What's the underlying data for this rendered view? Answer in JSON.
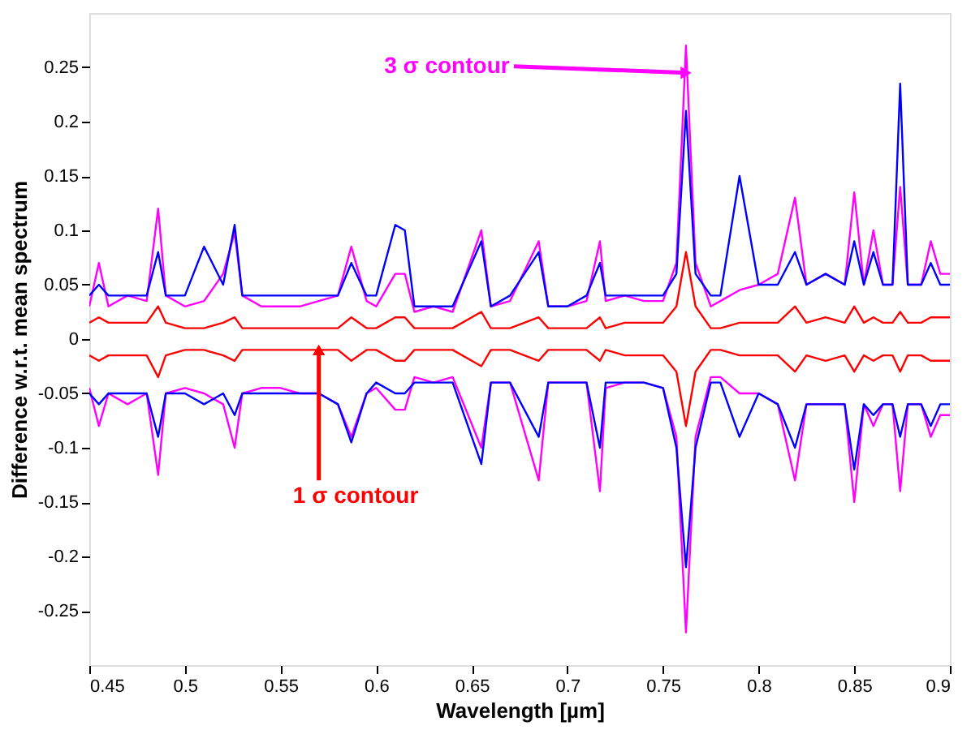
{
  "chart_data": {
    "type": "line",
    "xlabel": "Wavelength [µm]",
    "ylabel": "Difference w.r.t. mean spectrum",
    "x": [
      0.45,
      0.455,
      0.46,
      0.47,
      0.48,
      0.486,
      0.49,
      0.5,
      0.51,
      0.52,
      0.526,
      0.53,
      0.54,
      0.55,
      0.56,
      0.57,
      0.58,
      0.587,
      0.595,
      0.6,
      0.61,
      0.615,
      0.62,
      0.63,
      0.64,
      0.655,
      0.66,
      0.67,
      0.685,
      0.69,
      0.7,
      0.71,
      0.717,
      0.72,
      0.73,
      0.74,
      0.75,
      0.757,
      0.762,
      0.767,
      0.775,
      0.78,
      0.79,
      0.8,
      0.81,
      0.819,
      0.825,
      0.835,
      0.845,
      0.85,
      0.855,
      0.86,
      0.865,
      0.87,
      0.874,
      0.878,
      0.885,
      0.89,
      0.895,
      0.9
    ],
    "series": [
      {
        "color": "#ff00ff",
        "values": [
          0.03,
          0.07,
          0.03,
          0.04,
          0.035,
          0.12,
          0.04,
          0.03,
          0.035,
          0.06,
          0.098,
          0.04,
          0.03,
          0.03,
          0.03,
          0.035,
          0.04,
          0.085,
          0.035,
          0.03,
          0.06,
          0.06,
          0.025,
          0.03,
          0.025,
          0.1,
          0.03,
          0.035,
          0.09,
          0.03,
          0.03,
          0.035,
          0.09,
          0.035,
          0.04,
          0.035,
          0.035,
          0.07,
          0.27,
          0.07,
          0.03,
          0.035,
          0.045,
          0.05,
          0.06,
          0.13,
          0.05,
          0.06,
          0.05,
          0.135,
          0.05,
          0.1,
          0.05,
          0.05,
          0.14,
          0.05,
          0.05,
          0.09,
          0.06,
          0.06
        ]
      },
      {
        "color": "#ff00ff",
        "values": [
          -0.045,
          -0.08,
          -0.05,
          -0.06,
          -0.05,
          -0.125,
          -0.05,
          -0.045,
          -0.05,
          -0.06,
          -0.1,
          -0.05,
          -0.045,
          -0.045,
          -0.05,
          -0.05,
          -0.06,
          -0.09,
          -0.05,
          -0.045,
          -0.065,
          -0.065,
          -0.035,
          -0.04,
          -0.035,
          -0.1,
          -0.04,
          -0.04,
          -0.13,
          -0.04,
          -0.04,
          -0.04,
          -0.14,
          -0.045,
          -0.04,
          -0.04,
          -0.045,
          -0.09,
          -0.27,
          -0.09,
          -0.035,
          -0.035,
          -0.05,
          -0.05,
          -0.06,
          -0.13,
          -0.06,
          -0.06,
          -0.06,
          -0.15,
          -0.06,
          -0.08,
          -0.06,
          -0.06,
          -0.14,
          -0.06,
          -0.06,
          -0.09,
          -0.07,
          -0.07
        ]
      },
      {
        "color": "#0000ff",
        "values": [
          0.04,
          0.05,
          0.04,
          0.04,
          0.04,
          0.08,
          0.04,
          0.04,
          0.085,
          0.05,
          0.105,
          0.04,
          0.04,
          0.04,
          0.04,
          0.04,
          0.04,
          0.07,
          0.04,
          0.04,
          0.105,
          0.1,
          0.03,
          0.03,
          0.03,
          0.09,
          0.03,
          0.04,
          0.08,
          0.03,
          0.03,
          0.04,
          0.07,
          0.04,
          0.04,
          0.04,
          0.04,
          0.06,
          0.21,
          0.06,
          0.04,
          0.04,
          0.15,
          0.05,
          0.05,
          0.08,
          0.05,
          0.06,
          0.05,
          0.09,
          0.05,
          0.08,
          0.05,
          0.05,
          0.235,
          0.05,
          0.05,
          0.07,
          0.05,
          0.05
        ]
      },
      {
        "color": "#0000ff",
        "values": [
          -0.05,
          -0.06,
          -0.05,
          -0.05,
          -0.05,
          -0.09,
          -0.05,
          -0.05,
          -0.06,
          -0.05,
          -0.07,
          -0.05,
          -0.05,
          -0.05,
          -0.05,
          -0.05,
          -0.06,
          -0.095,
          -0.05,
          -0.04,
          -0.05,
          -0.05,
          -0.04,
          -0.04,
          -0.04,
          -0.115,
          -0.04,
          -0.04,
          -0.09,
          -0.04,
          -0.04,
          -0.04,
          -0.1,
          -0.04,
          -0.04,
          -0.04,
          -0.045,
          -0.1,
          -0.21,
          -0.1,
          -0.04,
          -0.04,
          -0.09,
          -0.05,
          -0.06,
          -0.1,
          -0.06,
          -0.06,
          -0.06,
          -0.12,
          -0.06,
          -0.07,
          -0.06,
          -0.06,
          -0.09,
          -0.06,
          -0.06,
          -0.08,
          -0.06,
          -0.06
        ]
      },
      {
        "color": "#ff0000",
        "values": [
          0.015,
          0.02,
          0.015,
          0.015,
          0.015,
          0.03,
          0.015,
          0.01,
          0.01,
          0.015,
          0.02,
          0.01,
          0.01,
          0.01,
          0.01,
          0.01,
          0.01,
          0.02,
          0.01,
          0.01,
          0.02,
          0.02,
          0.01,
          0.01,
          0.01,
          0.025,
          0.01,
          0.01,
          0.02,
          0.01,
          0.01,
          0.01,
          0.02,
          0.01,
          0.015,
          0.015,
          0.015,
          0.03,
          0.08,
          0.03,
          0.01,
          0.01,
          0.015,
          0.015,
          0.015,
          0.03,
          0.015,
          0.02,
          0.015,
          0.03,
          0.015,
          0.02,
          0.015,
          0.015,
          0.025,
          0.015,
          0.015,
          0.02,
          0.02,
          0.02
        ]
      },
      {
        "color": "#ff0000",
        "values": [
          -0.015,
          -0.02,
          -0.015,
          -0.015,
          -0.015,
          -0.035,
          -0.015,
          -0.01,
          -0.01,
          -0.015,
          -0.02,
          -0.01,
          -0.01,
          -0.01,
          -0.01,
          -0.01,
          -0.01,
          -0.02,
          -0.01,
          -0.01,
          -0.02,
          -0.02,
          -0.01,
          -0.01,
          -0.01,
          -0.025,
          -0.01,
          -0.01,
          -0.02,
          -0.01,
          -0.01,
          -0.01,
          -0.02,
          -0.01,
          -0.015,
          -0.015,
          -0.015,
          -0.03,
          -0.08,
          -0.03,
          -0.01,
          -0.01,
          -0.015,
          -0.015,
          -0.015,
          -0.03,
          -0.015,
          -0.02,
          -0.015,
          -0.03,
          -0.015,
          -0.02,
          -0.015,
          -0.015,
          -0.03,
          -0.015,
          -0.015,
          -0.02,
          -0.02,
          -0.02
        ]
      }
    ],
    "xlim": [
      0.45,
      0.9
    ],
    "xticks": [
      0.45,
      0.5,
      0.55,
      0.6,
      0.65,
      0.7,
      0.75,
      0.8,
      0.85,
      0.9
    ],
    "ylim": [
      -0.3,
      0.3
    ],
    "yticks": [
      -0.25,
      -0.2,
      -0.15,
      -0.1,
      -0.05,
      0,
      0.05,
      0.1,
      0.15,
      0.2,
      0.25
    ],
    "grid": false,
    "marker": "none",
    "line_style": "solid",
    "annotations": [
      {
        "text": "3 σ contour",
        "x": 0.762,
        "y": 0.245
      },
      {
        "text": "1 σ contour",
        "x": 0.57,
        "y": -0.01
      }
    ]
  }
}
